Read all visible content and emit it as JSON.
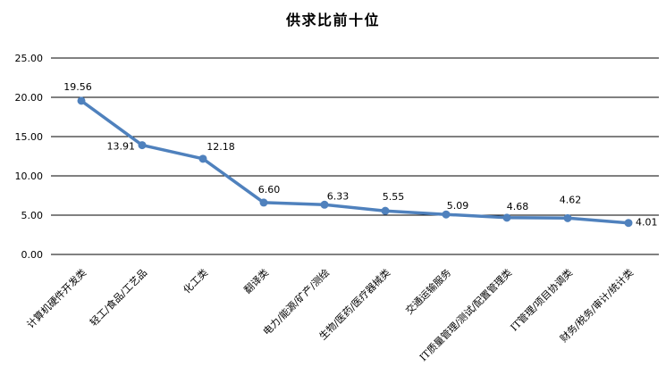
{
  "chart_data": {
    "type": "line",
    "title": "供求比前十位",
    "categories": [
      "计算机硬件开发类",
      "轻工/食品/工艺品",
      "化工类",
      "翻译类",
      "电力/能源/矿产/测绘",
      "生物/医药/医疗器械类",
      "交通运输服务",
      "IT质量管理/测试/配置管理类",
      "IT管理/项目协调类",
      "财务/税务/审计/统计类"
    ],
    "values": [
      19.56,
      13.91,
      12.18,
      6.6,
      6.33,
      5.55,
      5.09,
      4.68,
      4.62,
      4.01
    ],
    "data_labels": [
      "19.56",
      "13.91",
      "12.18",
      "6.60",
      "6.33",
      "5.55",
      "5.09",
      "4.68",
      "4.62",
      "4.01"
    ],
    "y_ticks": [
      "25.00",
      "20.00",
      "15.00",
      "10.00",
      "5.00",
      "0.00"
    ],
    "ylim": [
      0,
      25
    ],
    "xlabel": "",
    "ylabel": "",
    "grid": true,
    "legend": "none",
    "colors": {
      "series": "#4F81BD",
      "gridline": "#000000",
      "text": "#000000",
      "background": "#FFFFFF"
    }
  }
}
